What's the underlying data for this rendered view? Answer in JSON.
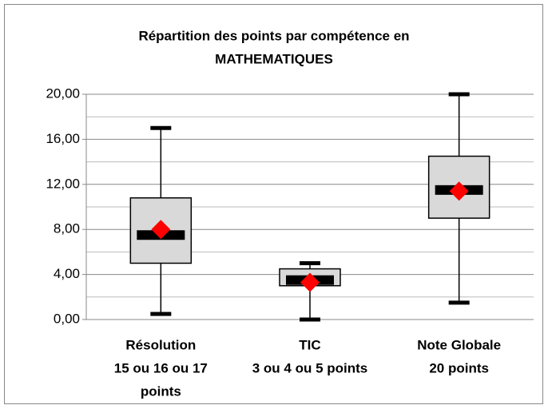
{
  "chart_data": {
    "type": "box",
    "title": [
      "Répartition des points par compétence en",
      "MATHEMATIQUES"
    ],
    "categories": [
      [
        "Résolution",
        "15 ou 16 ou 17",
        "points"
      ],
      [
        "TIC",
        "3 ou 4 ou 5 points"
      ],
      [
        "Note Globale",
        "20 points"
      ]
    ],
    "whisker_low": [
      0.5,
      0,
      1.5
    ],
    "q1": [
      5,
      3,
      9
    ],
    "median": [
      7.5,
      3.5,
      11.5
    ],
    "q3": [
      10.8,
      4.5,
      14.5
    ],
    "whisker_high": [
      17,
      5,
      20
    ],
    "mean": [
      8,
      3.3,
      11.4
    ],
    "box_color": "#d9d9d9",
    "mean_color": "#ff0000",
    "ylim": [
      0,
      20
    ],
    "yticks": [
      {
        "value": 0,
        "label": "0,00"
      },
      {
        "value": 4,
        "label": "4,00"
      },
      {
        "value": 8,
        "label": "8,00"
      },
      {
        "value": 12,
        "label": "12,00"
      },
      {
        "value": 16,
        "label": "16,00"
      },
      {
        "value": 20,
        "label": "20,00"
      }
    ],
    "minor_yticks": [
      2,
      6,
      10,
      14,
      18
    ],
    "grid": true
  }
}
